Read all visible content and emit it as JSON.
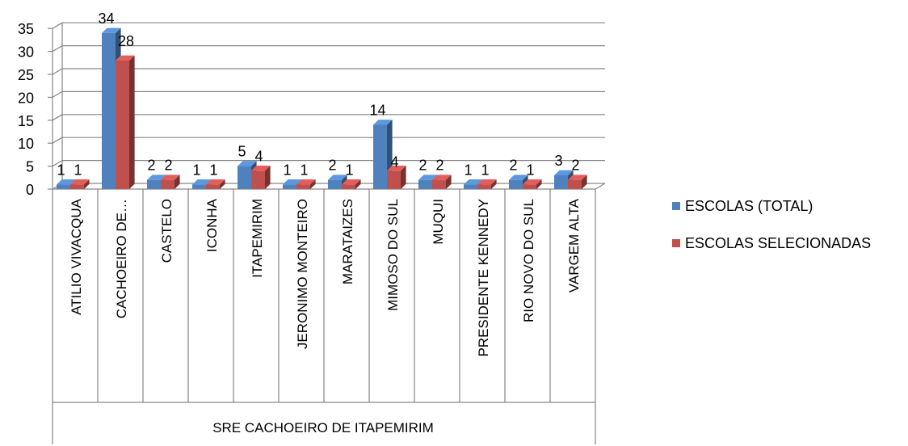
{
  "chart_data": {
    "type": "bar",
    "style": "3d-clustered-column",
    "group_label": "SRE CACHOEIRO DE ITAPEMIRIM",
    "categories": [
      "ATILIO VIVACQUA",
      "CACHOEIRO DE…",
      "CASTELO",
      "ICONHA",
      "ITAPEMIRIM",
      "JERONIMO MONTEIRO",
      "MARATAIZES",
      "MIMOSO DO SUL",
      "MUQUI",
      "PRESIDENTE KENNEDY",
      "RIO NOVO DO SUL",
      "VARGEM ALTA"
    ],
    "series": [
      {
        "name": "ESCOLAS (TOTAL)",
        "color": "#4f81bd",
        "values": [
          1,
          34,
          2,
          1,
          5,
          1,
          2,
          14,
          2,
          1,
          2,
          3
        ]
      },
      {
        "name": "ESCOLAS SELECIONADAS",
        "color": "#c0504d",
        "values": [
          1,
          28,
          2,
          1,
          4,
          1,
          1,
          4,
          2,
          1,
          1,
          2
        ]
      }
    ],
    "y_ticks": [
      "0",
      "5",
      "10",
      "15",
      "20",
      "25",
      "30",
      "35"
    ],
    "ylim": [
      0,
      35
    ],
    "grid": true,
    "legend_position": "right"
  }
}
